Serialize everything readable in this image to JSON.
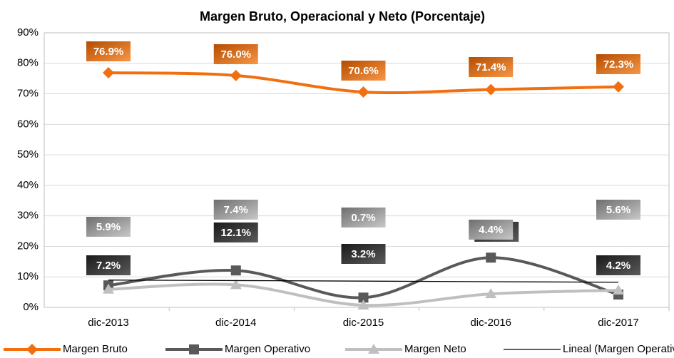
{
  "chart_data": {
    "type": "line",
    "title": "Margen Bruto, Operacional y Neto (Porcentaje)",
    "categories": [
      "dic-2013",
      "dic-2014",
      "dic-2015",
      "dic-2016",
      "dic-2017"
    ],
    "series": [
      {
        "name": "Margen Bruto",
        "color": "#f26f10",
        "marker": "diamond",
        "values": [
          76.9,
          76.0,
          70.6,
          71.4,
          72.3
        ],
        "value_labels": [
          "76.9%",
          "76.0%",
          "70.6%",
          "71.4%",
          "72.3%"
        ]
      },
      {
        "name": "Margen Operativo",
        "color": "#595959",
        "marker": "square",
        "values": [
          7.2,
          12.1,
          3.2,
          16.3,
          4.2
        ],
        "value_labels": [
          "7.2%",
          "12.1%",
          "3.2%",
          "16.3%",
          "4.2%"
        ]
      },
      {
        "name": "Margen Neto",
        "color": "#bfbfbf",
        "marker": "triangle",
        "values": [
          5.9,
          7.4,
          0.7,
          4.4,
          5.6
        ],
        "value_labels": [
          "5.9%",
          "7.4%",
          "0.7%",
          "4.4%",
          "5.6%"
        ]
      },
      {
        "name": "Lineal (Margen Operativo)",
        "color": "#000000",
        "marker": "none",
        "trend": true,
        "values": [
          8.96,
          8.78,
          8.6,
          8.42,
          8.24
        ]
      }
    ],
    "ylim": [
      0,
      90
    ],
    "yticks": [
      {
        "value": 0,
        "label": "0%"
      },
      {
        "value": 10,
        "label": "10%"
      },
      {
        "value": 20,
        "label": "20%"
      },
      {
        "value": 30,
        "label": "30%"
      },
      {
        "value": 40,
        "label": "40%"
      },
      {
        "value": 50,
        "label": "50%"
      },
      {
        "value": 60,
        "label": "60%"
      },
      {
        "value": 70,
        "label": "70%"
      },
      {
        "value": 80,
        "label": "80%"
      },
      {
        "value": 90,
        "label": "90%"
      }
    ],
    "grid": true,
    "legend": "bottom"
  }
}
